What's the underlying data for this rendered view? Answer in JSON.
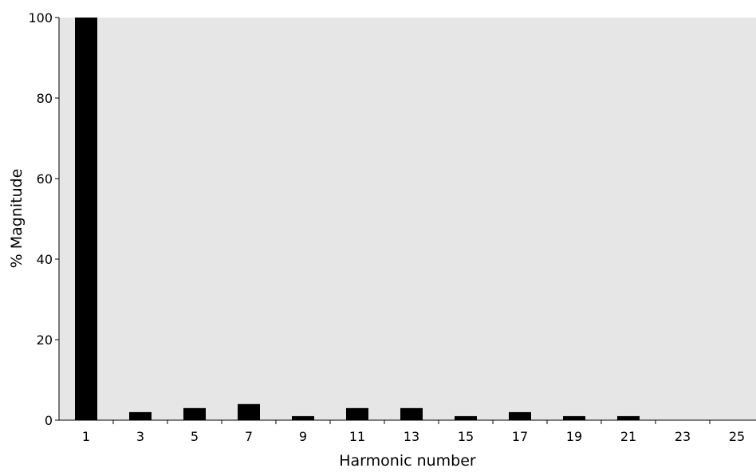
{
  "chart_data": {
    "type": "bar",
    "title": "",
    "xlabel": "Harmonic number",
    "ylabel": "% Magnitude",
    "categories": [
      "1",
      "3",
      "5",
      "7",
      "9",
      "11",
      "13",
      "15",
      "17",
      "19",
      "21",
      "23",
      "25"
    ],
    "values": [
      100,
      2,
      3,
      4,
      1,
      3,
      3,
      1,
      2,
      1,
      1,
      0,
      0
    ],
    "yticks": [
      "0",
      "20",
      "40",
      "60",
      "80",
      "100"
    ],
    "ylim": [
      0,
      100
    ],
    "grid": false,
    "legend": "none",
    "colors": {
      "plot_background": "#e6e6e6",
      "bar": "#000000",
      "axis": "#000000"
    }
  }
}
